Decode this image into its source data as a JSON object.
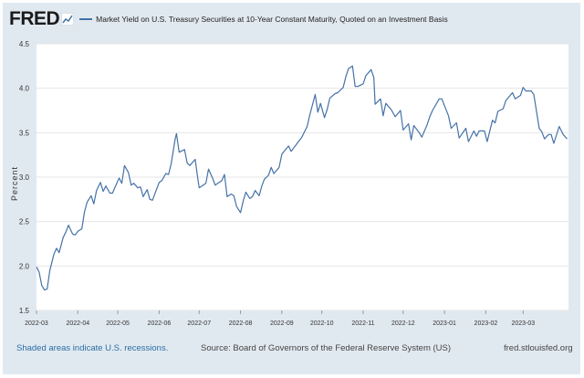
{
  "header": {
    "logo": "FRED",
    "series_title": "Market Yield on U.S. Treasury Securities at 10-Year Constant Maturity, Quoted on an Investment Basis"
  },
  "footer": {
    "recessions": "Shaded areas indicate U.S. recessions.",
    "source": "Source: Board of Governors of the Federal Reserve System (US)",
    "site": "fred.stlouisfed.org"
  },
  "colors": {
    "series": "#4572a7",
    "grid": "#e6e6e6",
    "frame": "#e1e9f0"
  },
  "chart_data": {
    "type": "line",
    "title": "Market Yield on U.S. Treasury Securities at 10-Year Constant Maturity, Quoted on an Investment Basis",
    "xlabel": "",
    "ylabel": "Percent",
    "ylim": [
      1.5,
      4.5
    ],
    "yticks": [
      "1.5",
      "2.0",
      "2.5",
      "3.0",
      "3.5",
      "4.0",
      "4.5"
    ],
    "xticks": [
      "2022-03",
      "2022-04",
      "2022-05",
      "2022-06",
      "2022-07",
      "2022-08",
      "2022-09",
      "2022-10",
      "2022-11",
      "2022-12",
      "2023-01",
      "2023-02",
      "2023-03"
    ],
    "grid": true,
    "series": [
      {
        "points": [
          [
            "2022-03-01",
            1.99
          ],
          [
            "2022-03-03",
            1.93
          ],
          [
            "2022-03-05",
            1.78
          ],
          [
            "2022-03-07",
            1.73
          ],
          [
            "2022-03-09",
            1.74
          ],
          [
            "2022-03-11",
            1.95
          ],
          [
            "2022-03-14",
            2.13
          ],
          [
            "2022-03-16",
            2.2
          ],
          [
            "2022-03-18",
            2.15
          ],
          [
            "2022-03-21",
            2.32
          ],
          [
            "2022-03-23",
            2.38
          ],
          [
            "2022-03-25",
            2.46
          ],
          [
            "2022-03-28",
            2.36
          ],
          [
            "2022-03-30",
            2.35
          ],
          [
            "2022-04-01",
            2.39
          ],
          [
            "2022-04-04",
            2.42
          ],
          [
            "2022-04-06",
            2.61
          ],
          [
            "2022-04-08",
            2.72
          ],
          [
            "2022-04-11",
            2.79
          ],
          [
            "2022-04-13",
            2.7
          ],
          [
            "2022-04-15",
            2.85
          ],
          [
            "2022-04-18",
            2.94
          ],
          [
            "2022-04-20",
            2.84
          ],
          [
            "2022-04-22",
            2.9
          ],
          [
            "2022-04-25",
            2.82
          ],
          [
            "2022-04-27",
            2.82
          ],
          [
            "2022-04-29",
            2.89
          ],
          [
            "2022-05-02",
            2.99
          ],
          [
            "2022-05-04",
            2.93
          ],
          [
            "2022-05-06",
            3.13
          ],
          [
            "2022-05-09",
            3.05
          ],
          [
            "2022-05-11",
            2.91
          ],
          [
            "2022-05-13",
            2.93
          ],
          [
            "2022-05-16",
            2.88
          ],
          [
            "2022-05-18",
            2.89
          ],
          [
            "2022-05-20",
            2.78
          ],
          [
            "2022-05-23",
            2.86
          ],
          [
            "2022-05-25",
            2.75
          ],
          [
            "2022-05-27",
            2.74
          ],
          [
            "2022-06-01",
            2.94
          ],
          [
            "2022-06-03",
            2.96
          ],
          [
            "2022-06-06",
            3.04
          ],
          [
            "2022-06-08",
            3.03
          ],
          [
            "2022-06-10",
            3.15
          ],
          [
            "2022-06-13",
            3.43
          ],
          [
            "2022-06-14",
            3.49
          ],
          [
            "2022-06-16",
            3.28
          ],
          [
            "2022-06-20",
            3.31
          ],
          [
            "2022-06-22",
            3.16
          ],
          [
            "2022-06-24",
            3.13
          ],
          [
            "2022-06-28",
            3.2
          ],
          [
            "2022-06-30",
            2.98
          ],
          [
            "2022-07-01",
            2.88
          ],
          [
            "2022-07-06",
            2.93
          ],
          [
            "2022-07-08",
            3.09
          ],
          [
            "2022-07-11",
            2.99
          ],
          [
            "2022-07-13",
            2.91
          ],
          [
            "2022-07-15",
            2.93
          ],
          [
            "2022-07-18",
            2.96
          ],
          [
            "2022-07-20",
            3.03
          ],
          [
            "2022-07-22",
            2.78
          ],
          [
            "2022-07-25",
            2.81
          ],
          [
            "2022-07-27",
            2.79
          ],
          [
            "2022-07-29",
            2.67
          ],
          [
            "2022-08-01",
            2.6
          ],
          [
            "2022-08-03",
            2.73
          ],
          [
            "2022-08-05",
            2.83
          ],
          [
            "2022-08-08",
            2.76
          ],
          [
            "2022-08-10",
            2.78
          ],
          [
            "2022-08-12",
            2.85
          ],
          [
            "2022-08-15",
            2.79
          ],
          [
            "2022-08-17",
            2.9
          ],
          [
            "2022-08-19",
            2.98
          ],
          [
            "2022-08-22",
            3.02
          ],
          [
            "2022-08-24",
            3.11
          ],
          [
            "2022-08-26",
            3.04
          ],
          [
            "2022-08-30",
            3.11
          ],
          [
            "2022-09-01",
            3.26
          ],
          [
            "2022-09-06",
            3.35
          ],
          [
            "2022-09-08",
            3.29
          ],
          [
            "2022-09-12",
            3.37
          ],
          [
            "2022-09-14",
            3.41
          ],
          [
            "2022-09-16",
            3.45
          ],
          [
            "2022-09-20",
            3.57
          ],
          [
            "2022-09-22",
            3.7
          ],
          [
            "2022-09-26",
            3.93
          ],
          [
            "2022-09-28",
            3.73
          ],
          [
            "2022-09-30",
            3.83
          ],
          [
            "2022-10-03",
            3.67
          ],
          [
            "2022-10-05",
            3.76
          ],
          [
            "2022-10-07",
            3.89
          ],
          [
            "2022-10-11",
            3.94
          ],
          [
            "2022-10-13",
            3.95
          ],
          [
            "2022-10-17",
            4.01
          ],
          [
            "2022-10-19",
            4.13
          ],
          [
            "2022-10-21",
            4.22
          ],
          [
            "2022-10-24",
            4.25
          ],
          [
            "2022-10-26",
            4.02
          ],
          [
            "2022-10-28",
            4.02
          ],
          [
            "2022-11-01",
            4.05
          ],
          [
            "2022-11-03",
            4.14
          ],
          [
            "2022-11-07",
            4.21
          ],
          [
            "2022-11-09",
            4.12
          ],
          [
            "2022-11-10",
            3.82
          ],
          [
            "2022-11-14",
            3.88
          ],
          [
            "2022-11-16",
            3.69
          ],
          [
            "2022-11-18",
            3.83
          ],
          [
            "2022-11-22",
            3.76
          ],
          [
            "2022-11-25",
            3.68
          ],
          [
            "2022-11-29",
            3.75
          ],
          [
            "2022-12-01",
            3.53
          ],
          [
            "2022-12-05",
            3.6
          ],
          [
            "2022-12-07",
            3.42
          ],
          [
            "2022-12-09",
            3.58
          ],
          [
            "2022-12-13",
            3.5
          ],
          [
            "2022-12-15",
            3.45
          ],
          [
            "2022-12-19",
            3.59
          ],
          [
            "2022-12-21",
            3.68
          ],
          [
            "2022-12-23",
            3.75
          ],
          [
            "2022-12-28",
            3.88
          ],
          [
            "2022-12-30",
            3.88
          ],
          [
            "2023-01-04",
            3.69
          ],
          [
            "2023-01-06",
            3.55
          ],
          [
            "2023-01-10",
            3.61
          ],
          [
            "2023-01-12",
            3.44
          ],
          [
            "2023-01-17",
            3.55
          ],
          [
            "2023-01-19",
            3.4
          ],
          [
            "2023-01-23",
            3.52
          ],
          [
            "2023-01-25",
            3.46
          ],
          [
            "2023-01-27",
            3.52
          ],
          [
            "2023-01-31",
            3.52
          ],
          [
            "2023-02-02",
            3.4
          ],
          [
            "2023-02-06",
            3.64
          ],
          [
            "2023-02-08",
            3.61
          ],
          [
            "2023-02-10",
            3.74
          ],
          [
            "2023-02-14",
            3.77
          ],
          [
            "2023-02-16",
            3.86
          ],
          [
            "2023-02-21",
            3.95
          ],
          [
            "2023-02-23",
            3.88
          ],
          [
            "2023-02-27",
            3.92
          ],
          [
            "2023-03-01",
            4.01
          ],
          [
            "2023-03-03",
            3.97
          ],
          [
            "2023-03-07",
            3.97
          ],
          [
            "2023-03-09",
            3.93
          ],
          [
            "2023-03-13",
            3.55
          ],
          [
            "2023-03-15",
            3.51
          ],
          [
            "2023-03-17",
            3.43
          ],
          [
            "2023-03-20",
            3.48
          ],
          [
            "2023-03-22",
            3.48
          ],
          [
            "2023-03-24",
            3.38
          ],
          [
            "2023-03-28",
            3.57
          ],
          [
            "2023-03-31",
            3.48
          ],
          [
            "2023-04-03",
            3.43
          ]
        ]
      }
    ]
  }
}
